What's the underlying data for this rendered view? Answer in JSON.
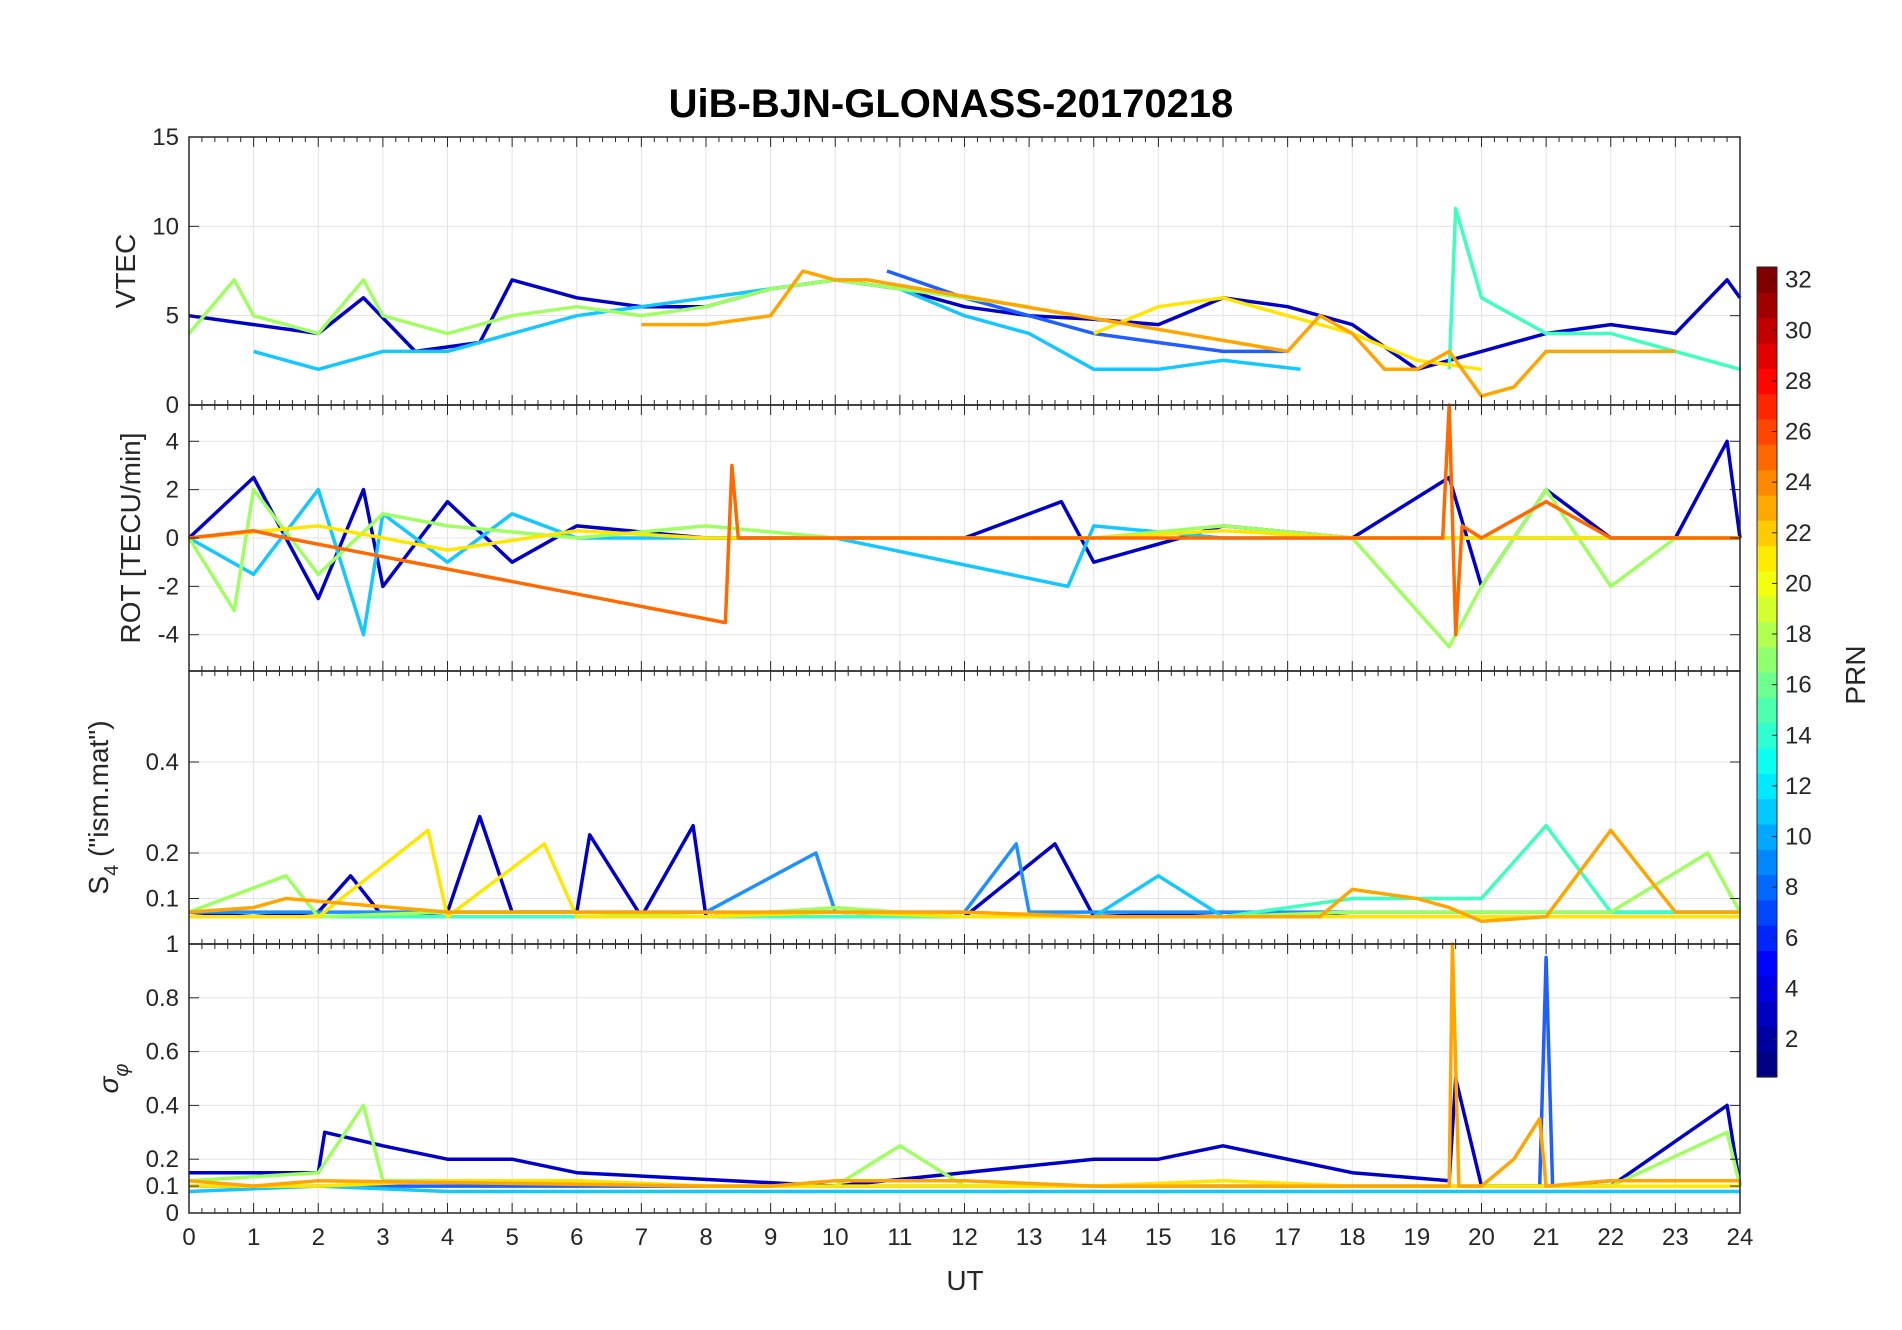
{
  "chart_data": {
    "type": "line",
    "title": "UiB-BJN-GLONASS-20170218",
    "xlabel": "UT",
    "xlim": [
      0,
      24
    ],
    "x_ticks": [
      "0",
      "1",
      "2",
      "3",
      "4",
      "5",
      "6",
      "7",
      "8",
      "9",
      "10",
      "11",
      "12",
      "13",
      "14",
      "15",
      "16",
      "17",
      "18",
      "19",
      "20",
      "21",
      "22",
      "23",
      "24"
    ],
    "grid": true,
    "panels": [
      {
        "id": "vtec",
        "ylabel": "VTEC",
        "ylim": [
          0,
          15
        ],
        "y_ticks": [
          0,
          5,
          10,
          15
        ],
        "series": [
          {
            "prn": 2,
            "color": "#0000c8",
            "x": [
              0,
              1,
              2,
              2.7,
              3.5,
              4.5,
              5,
              6,
              7,
              8,
              9,
              10,
              11,
              12,
              13,
              14,
              15,
              16,
              17,
              18,
              19,
              20,
              21,
              22,
              23,
              23.8,
              24
            ],
            "y": [
              5,
              4.5,
              4,
              6,
              3,
              3.5,
              7,
              6,
              5.5,
              5.5,
              6.5,
              7,
              6.5,
              5.5,
              5,
              4.8,
              4.5,
              6,
              5.5,
              4.5,
              2,
              3,
              4,
              4.5,
              4,
              7,
              6
            ]
          },
          {
            "prn": 7,
            "color": "#1f5fff",
            "x": [
              10.8,
              12,
              13,
              14,
              15,
              16,
              17
            ],
            "y": [
              7.5,
              6,
              5,
              4,
              3.5,
              3,
              3
            ]
          },
          {
            "prn": 11,
            "color": "#14c8ff",
            "x": [
              1,
              2,
              3,
              4,
              5,
              6,
              7,
              8,
              9,
              10,
              11,
              12,
              13,
              14,
              15,
              16,
              17.2
            ],
            "y": [
              3,
              2,
              3,
              3,
              4,
              5,
              5.5,
              6,
              6.5,
              7,
              6.5,
              5,
              4,
              2,
              2,
              2.5,
              2
            ]
          },
          {
            "prn": 14,
            "color": "#3cffc0",
            "x": [
              19.5,
              19.6,
              20,
              21,
              22,
              23,
              24
            ],
            "y": [
              2,
              11,
              6,
              4,
              4,
              3,
              2
            ]
          },
          {
            "prn": 17,
            "color": "#a0ff60",
            "x": [
              0,
              0.7,
              1,
              2,
              2.7,
              3,
              4,
              5,
              6,
              7,
              8,
              9,
              10,
              11,
              12,
              13
            ],
            "y": [
              4,
              7,
              5,
              4,
              7,
              5,
              4,
              5,
              5.5,
              5,
              5.5,
              6.5,
              7,
              6.5,
              6,
              5.5
            ]
          },
          {
            "prn": 20,
            "color": "#ffe600",
            "x": [
              14,
              15,
              16,
              17,
              18,
              19,
              20
            ],
            "y": [
              4,
              5.5,
              6,
              5,
              4,
              2.5,
              2
            ]
          },
          {
            "prn": 23,
            "color": "#ffa500",
            "x": [
              7,
              8,
              9,
              9.5,
              10,
              10.5,
              17,
              17.5,
              18,
              18.5,
              19,
              19.5,
              20,
              20.5,
              21,
              22,
              23
            ],
            "y": [
              4.5,
              4.5,
              5,
              7.5,
              7,
              7,
              3,
              5,
              4,
              2,
              2,
              3,
              0.5,
              1,
              3,
              3,
              3
            ]
          }
        ]
      },
      {
        "id": "rot",
        "ylabel": "ROT [TECU/min]",
        "ylim": [
          -5.5,
          5.5
        ],
        "y_ticks": [
          -4,
          -2,
          0,
          2,
          4
        ],
        "series": [
          {
            "prn": 2,
            "color": "#0000c8",
            "x": [
              0,
              1,
              2,
              2.7,
              3,
              4,
              5,
              6,
              8,
              10,
              12,
              13.5,
              14,
              16,
              18,
              19.5,
              20,
              21,
              22,
              23,
              23.8,
              24
            ],
            "y": [
              0,
              2.5,
              -2.5,
              2,
              -2,
              1.5,
              -1,
              0.5,
              0,
              0,
              0,
              1.5,
              -1,
              0.5,
              0,
              2.5,
              -2,
              2,
              0,
              0,
              4,
              0
            ]
          },
          {
            "prn": 11,
            "color": "#14c8ff",
            "x": [
              0,
              1,
              2,
              2.7,
              3,
              4,
              5,
              6,
              8,
              10,
              13.6,
              14,
              16,
              18,
              20,
              22,
              24
            ],
            "y": [
              0,
              -1.5,
              2,
              -4,
              1,
              -1,
              1,
              0,
              0,
              0,
              -2,
              0.5,
              0,
              0,
              0,
              0,
              0
            ]
          },
          {
            "prn": 17,
            "color": "#a0ff60",
            "x": [
              0,
              0.7,
              1,
              2,
              3,
              4,
              6,
              8,
              10,
              12,
              14,
              16,
              18,
              19.5,
              20,
              21,
              22,
              23,
              24
            ],
            "y": [
              0,
              -3,
              2,
              -1.5,
              1,
              0.5,
              0,
              0.5,
              0,
              0,
              0,
              0.5,
              0,
              -4.5,
              -2,
              2,
              -2,
              0,
              0
            ]
          },
          {
            "prn": 20,
            "color": "#ffe600",
            "x": [
              0,
              2,
              4,
              6,
              8,
              10,
              12,
              14,
              16,
              18,
              20,
              22,
              24
            ],
            "y": [
              0,
              0.5,
              -0.5,
              0.3,
              0,
              0,
              0,
              0,
              0.3,
              0,
              0,
              0,
              0
            ]
          },
          {
            "prn": 24,
            "color": "#ff6a00",
            "x": [
              0,
              1,
              1.5,
              8.3,
              8.4,
              8.5,
              10,
              12,
              18,
              19.4,
              19.5,
              19.6,
              19.7,
              20,
              21,
              22,
              24
            ],
            "y": [
              0,
              0.3,
              0,
              -3.5,
              3,
              0,
              0,
              0,
              0,
              0,
              5.5,
              -4,
              0.5,
              0,
              1.5,
              0,
              0
            ]
          }
        ]
      },
      {
        "id": "s4",
        "ylabel": "S4 (\"ism.mat\")",
        "ylabel_main": "S",
        "ylabel_sub": "4",
        "ylabel_rest": " (\"ism.mat\")",
        "ylim": [
          0,
          0.6
        ],
        "y_ticks": [
          0.1,
          0.2,
          0.4
        ],
        "series": [
          {
            "prn": 2,
            "color": "#0000c8",
            "x": [
              0,
              1,
              2,
              2.5,
              3,
              4,
              4.5,
              5,
              6,
              6.2,
              7,
              7.8,
              8,
              9,
              10,
              12,
              13.4,
              14,
              16,
              18,
              20,
              22,
              24
            ],
            "y": [
              0.07,
              0.06,
              0.07,
              0.15,
              0.06,
              0.07,
              0.28,
              0.07,
              0.07,
              0.24,
              0.06,
              0.26,
              0.06,
              0.07,
              0.07,
              0.06,
              0.22,
              0.06,
              0.07,
              0.06,
              0.06,
              0.06,
              0.06
            ]
          },
          {
            "prn": 9,
            "color": "#1e90ff",
            "x": [
              0,
              2,
              4,
              6,
              8,
              9.7,
              10,
              12,
              12.8,
              13,
              14,
              16,
              18,
              20,
              22,
              24
            ],
            "y": [
              0.07,
              0.07,
              0.07,
              0.07,
              0.07,
              0.2,
              0.07,
              0.07,
              0.22,
              0.07,
              0.07,
              0.07,
              0.07,
              0.07,
              0.07,
              0.07
            ]
          },
          {
            "prn": 12,
            "color": "#14c8ff",
            "x": [
              0,
              2,
              4,
              6,
              8,
              10,
              12,
              14,
              15,
              16,
              18,
              20,
              22,
              24
            ],
            "y": [
              0.06,
              0.06,
              0.06,
              0.06,
              0.06,
              0.06,
              0.06,
              0.06,
              0.15,
              0.06,
              0.06,
              0.06,
              0.06,
              0.06
            ]
          },
          {
            "prn": 15,
            "color": "#3cffc0",
            "x": [
              0,
              4,
              8,
              12,
              16,
              18,
              19,
              20,
              21,
              22,
              24
            ],
            "y": [
              0.06,
              0.06,
              0.06,
              0.06,
              0.06,
              0.1,
              0.1,
              0.1,
              0.26,
              0.07,
              0.07
            ]
          },
          {
            "prn": 17,
            "color": "#a0ff60",
            "x": [
              0,
              1.5,
              2,
              4,
              6,
              8,
              10,
              12,
              14,
              16,
              18,
              20,
              22,
              23.5,
              24
            ],
            "y": [
              0.07,
              0.15,
              0.06,
              0.07,
              0.07,
              0.06,
              0.08,
              0.06,
              0.06,
              0.06,
              0.07,
              0.07,
              0.07,
              0.2,
              0.07
            ]
          },
          {
            "prn": 20,
            "color": "#ffe600",
            "x": [
              0,
              2,
              3.7,
              4,
              5.5,
              6,
              8,
              10,
              12,
              14,
              16,
              18,
              20,
              22,
              24
            ],
            "y": [
              0.06,
              0.06,
              0.25,
              0.06,
              0.22,
              0.06,
              0.06,
              0.07,
              0.06,
              0.06,
              0.06,
              0.06,
              0.06,
              0.06,
              0.06
            ]
          },
          {
            "prn": 23,
            "color": "#ffa500",
            "x": [
              0,
              1,
              1.5,
              4,
              8,
              10,
              12,
              14,
              16,
              17.5,
              18,
              19,
              19.5,
              20,
              21,
              22,
              23,
              24
            ],
            "y": [
              0.07,
              0.08,
              0.1,
              0.07,
              0.07,
              0.07,
              0.07,
              0.06,
              0.06,
              0.06,
              0.12,
              0.1,
              0.08,
              0.05,
              0.06,
              0.25,
              0.07,
              0.07
            ]
          }
        ]
      },
      {
        "id": "sigma_phi",
        "ylabel": "σ_φ",
        "ylabel_main": "σ",
        "ylabel_sub": "φ",
        "ylim": [
          0,
          1
        ],
        "y_ticks": [
          0,
          0.1,
          0.2,
          0.4,
          0.6,
          0.8,
          1
        ],
        "series": [
          {
            "prn": 2,
            "color": "#0000c8",
            "x": [
              0,
              2,
              2.1,
              3,
              4,
              5,
              6,
              10,
              14,
              15,
              16,
              18,
              19.5,
              19.6,
              20,
              21,
              22,
              23.8,
              24
            ],
            "y": [
              0.15,
              0.15,
              0.3,
              0.25,
              0.2,
              0.2,
              0.15,
              0.1,
              0.2,
              0.2,
              0.25,
              0.15,
              0.12,
              0.5,
              0.1,
              0.1,
              0.1,
              0.4,
              0.1
            ]
          },
          {
            "prn": 6,
            "color": "#1f5fff",
            "x": [
              0,
              4,
              8,
              12,
              16,
              20,
              20.9,
              21,
              21.1,
              22,
              24
            ],
            "y": [
              0.1,
              0.1,
              0.1,
              0.1,
              0.1,
              0.1,
              0.1,
              0.95,
              0.1,
              0.12,
              0.12
            ]
          },
          {
            "prn": 12,
            "color": "#14c8ff",
            "x": [
              0,
              2,
              4,
              6,
              8,
              10,
              12,
              14,
              16,
              18,
              20,
              22,
              24
            ],
            "y": [
              0.08,
              0.1,
              0.08,
              0.08,
              0.08,
              0.08,
              0.08,
              0.08,
              0.08,
              0.08,
              0.08,
              0.08,
              0.08
            ]
          },
          {
            "prn": 17,
            "color": "#a0ff60",
            "x": [
              0,
              2,
              2.7,
              3,
              4,
              6,
              8,
              10,
              11,
              12,
              14,
              16,
              18,
              20,
              22,
              23.8,
              24
            ],
            "y": [
              0.12,
              0.15,
              0.4,
              0.12,
              0.12,
              0.12,
              0.1,
              0.1,
              0.25,
              0.1,
              0.1,
              0.1,
              0.1,
              0.1,
              0.1,
              0.3,
              0.1
            ]
          },
          {
            "prn": 20,
            "color": "#ffe600",
            "x": [
              0,
              2,
              4,
              6,
              8,
              10,
              12,
              14,
              16,
              18,
              20,
              22,
              24
            ],
            "y": [
              0.1,
              0.1,
              0.12,
              0.12,
              0.1,
              0.1,
              0.1,
              0.1,
              0.12,
              0.1,
              0.1,
              0.1,
              0.1
            ]
          },
          {
            "prn": 23,
            "color": "#ffa500",
            "x": [
              0,
              1,
              2,
              8,
              9,
              10,
              12,
              14,
              18,
              19.5,
              19.55,
              19.65,
              20,
              20.5,
              20.9,
              21,
              22,
              24
            ],
            "y": [
              0.12,
              0.1,
              0.12,
              0.1,
              0.1,
              0.12,
              0.12,
              0.1,
              0.1,
              0.1,
              1,
              0.1,
              0.1,
              0.2,
              0.35,
              0.1,
              0.12,
              0.12
            ]
          }
        ]
      }
    ],
    "colorbar": {
      "label": "PRN",
      "range": [
        1,
        32
      ],
      "ticks": [
        2,
        4,
        6,
        8,
        10,
        12,
        14,
        16,
        18,
        20,
        22,
        24,
        26,
        28,
        30,
        32
      ],
      "colormap": "jet"
    }
  }
}
